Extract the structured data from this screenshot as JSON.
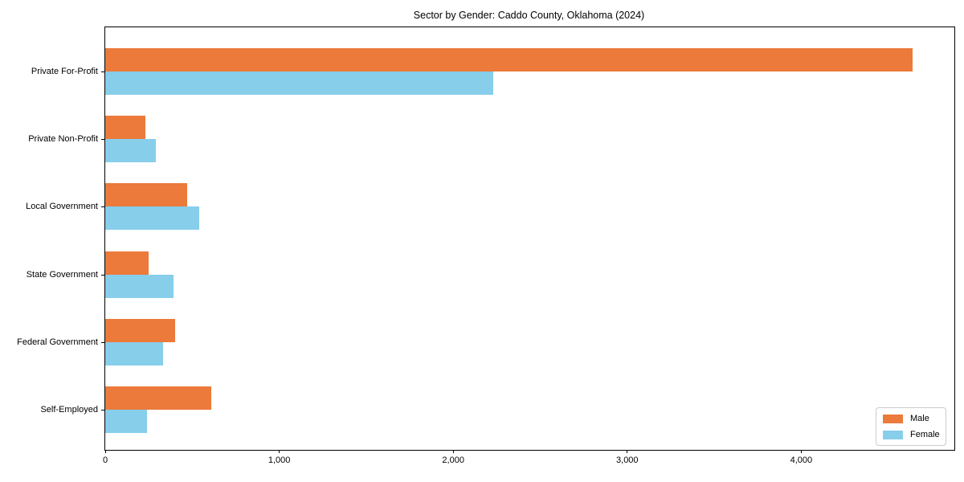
{
  "chart_data": {
    "type": "bar",
    "orientation": "horizontal",
    "title": "Sector by Gender: Caddo County, Oklahoma (2024)",
    "categories": [
      "Private For-Profit",
      "Private Non-Profit",
      "Local Government",
      "State Government",
      "Federal Government",
      "Self-Employed"
    ],
    "series": [
      {
        "name": "Male",
        "color": "#EB7A3B",
        "values": [
          4640,
          230,
          470,
          250,
          400,
          610
        ]
      },
      {
        "name": "Female",
        "color": "#87CEEB",
        "values": [
          2230,
          290,
          540,
          390,
          330,
          240
        ]
      }
    ],
    "xlabel": "",
    "ylabel": "",
    "xlim": [
      0,
      4880
    ],
    "xticks": [
      0,
      1000,
      2000,
      3000,
      4000
    ],
    "xtick_labels": [
      "0",
      "1,000",
      "2,000",
      "3,000",
      "4,000"
    ],
    "grid": false,
    "legend_position": "lower right"
  }
}
